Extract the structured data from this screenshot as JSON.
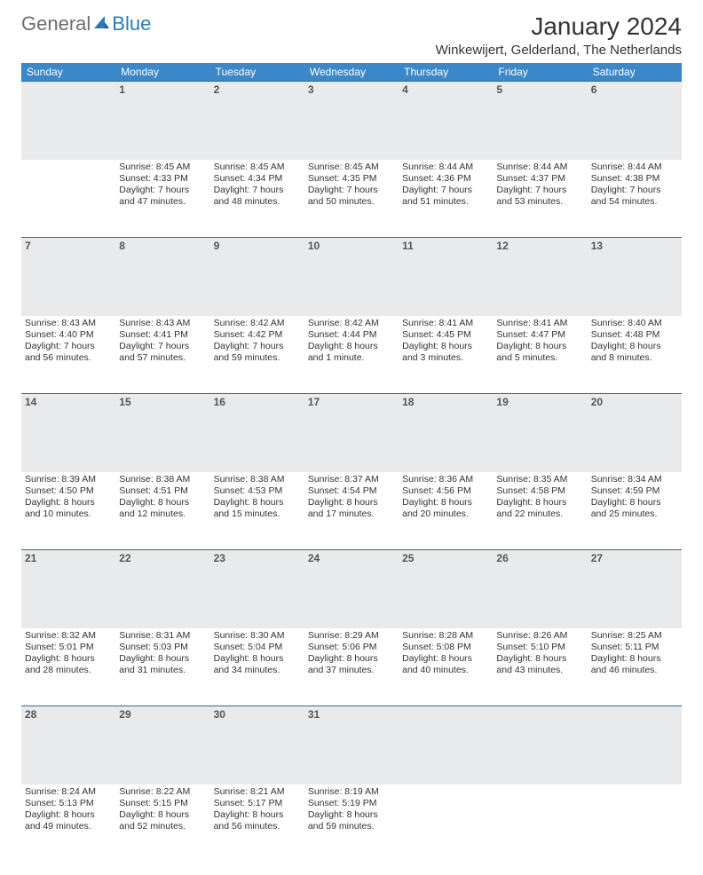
{
  "logo": {
    "text1": "General",
    "text2": "Blue"
  },
  "title": "January 2024",
  "location": "Winkewijert, Gelderland, The Netherlands",
  "colors": {
    "header_bg": "#3c87c7",
    "header_text": "#ffffff",
    "daynum_bg": "#e9eaeb",
    "daynum_border": "#2a6ca8",
    "text": "#333333"
  },
  "weekdays": [
    "Sunday",
    "Monday",
    "Tuesday",
    "Wednesday",
    "Thursday",
    "Friday",
    "Saturday"
  ],
  "weeks": [
    [
      {
        "n": "",
        "sr": "",
        "ss": "",
        "d1": "",
        "d2": ""
      },
      {
        "n": "1",
        "sr": "Sunrise: 8:45 AM",
        "ss": "Sunset: 4:33 PM",
        "d1": "Daylight: 7 hours",
        "d2": "and 47 minutes."
      },
      {
        "n": "2",
        "sr": "Sunrise: 8:45 AM",
        "ss": "Sunset: 4:34 PM",
        "d1": "Daylight: 7 hours",
        "d2": "and 48 minutes."
      },
      {
        "n": "3",
        "sr": "Sunrise: 8:45 AM",
        "ss": "Sunset: 4:35 PM",
        "d1": "Daylight: 7 hours",
        "d2": "and 50 minutes."
      },
      {
        "n": "4",
        "sr": "Sunrise: 8:44 AM",
        "ss": "Sunset: 4:36 PM",
        "d1": "Daylight: 7 hours",
        "d2": "and 51 minutes."
      },
      {
        "n": "5",
        "sr": "Sunrise: 8:44 AM",
        "ss": "Sunset: 4:37 PM",
        "d1": "Daylight: 7 hours",
        "d2": "and 53 minutes."
      },
      {
        "n": "6",
        "sr": "Sunrise: 8:44 AM",
        "ss": "Sunset: 4:38 PM",
        "d1": "Daylight: 7 hours",
        "d2": "and 54 minutes."
      }
    ],
    [
      {
        "n": "7",
        "sr": "Sunrise: 8:43 AM",
        "ss": "Sunset: 4:40 PM",
        "d1": "Daylight: 7 hours",
        "d2": "and 56 minutes."
      },
      {
        "n": "8",
        "sr": "Sunrise: 8:43 AM",
        "ss": "Sunset: 4:41 PM",
        "d1": "Daylight: 7 hours",
        "d2": "and 57 minutes."
      },
      {
        "n": "9",
        "sr": "Sunrise: 8:42 AM",
        "ss": "Sunset: 4:42 PM",
        "d1": "Daylight: 7 hours",
        "d2": "and 59 minutes."
      },
      {
        "n": "10",
        "sr": "Sunrise: 8:42 AM",
        "ss": "Sunset: 4:44 PM",
        "d1": "Daylight: 8 hours",
        "d2": "and 1 minute."
      },
      {
        "n": "11",
        "sr": "Sunrise: 8:41 AM",
        "ss": "Sunset: 4:45 PM",
        "d1": "Daylight: 8 hours",
        "d2": "and 3 minutes."
      },
      {
        "n": "12",
        "sr": "Sunrise: 8:41 AM",
        "ss": "Sunset: 4:47 PM",
        "d1": "Daylight: 8 hours",
        "d2": "and 5 minutes."
      },
      {
        "n": "13",
        "sr": "Sunrise: 8:40 AM",
        "ss": "Sunset: 4:48 PM",
        "d1": "Daylight: 8 hours",
        "d2": "and 8 minutes."
      }
    ],
    [
      {
        "n": "14",
        "sr": "Sunrise: 8:39 AM",
        "ss": "Sunset: 4:50 PM",
        "d1": "Daylight: 8 hours",
        "d2": "and 10 minutes."
      },
      {
        "n": "15",
        "sr": "Sunrise: 8:38 AM",
        "ss": "Sunset: 4:51 PM",
        "d1": "Daylight: 8 hours",
        "d2": "and 12 minutes."
      },
      {
        "n": "16",
        "sr": "Sunrise: 8:38 AM",
        "ss": "Sunset: 4:53 PM",
        "d1": "Daylight: 8 hours",
        "d2": "and 15 minutes."
      },
      {
        "n": "17",
        "sr": "Sunrise: 8:37 AM",
        "ss": "Sunset: 4:54 PM",
        "d1": "Daylight: 8 hours",
        "d2": "and 17 minutes."
      },
      {
        "n": "18",
        "sr": "Sunrise: 8:36 AM",
        "ss": "Sunset: 4:56 PM",
        "d1": "Daylight: 8 hours",
        "d2": "and 20 minutes."
      },
      {
        "n": "19",
        "sr": "Sunrise: 8:35 AM",
        "ss": "Sunset: 4:58 PM",
        "d1": "Daylight: 8 hours",
        "d2": "and 22 minutes."
      },
      {
        "n": "20",
        "sr": "Sunrise: 8:34 AM",
        "ss": "Sunset: 4:59 PM",
        "d1": "Daylight: 8 hours",
        "d2": "and 25 minutes."
      }
    ],
    [
      {
        "n": "21",
        "sr": "Sunrise: 8:32 AM",
        "ss": "Sunset: 5:01 PM",
        "d1": "Daylight: 8 hours",
        "d2": "and 28 minutes."
      },
      {
        "n": "22",
        "sr": "Sunrise: 8:31 AM",
        "ss": "Sunset: 5:03 PM",
        "d1": "Daylight: 8 hours",
        "d2": "and 31 minutes."
      },
      {
        "n": "23",
        "sr": "Sunrise: 8:30 AM",
        "ss": "Sunset: 5:04 PM",
        "d1": "Daylight: 8 hours",
        "d2": "and 34 minutes."
      },
      {
        "n": "24",
        "sr": "Sunrise: 8:29 AM",
        "ss": "Sunset: 5:06 PM",
        "d1": "Daylight: 8 hours",
        "d2": "and 37 minutes."
      },
      {
        "n": "25",
        "sr": "Sunrise: 8:28 AM",
        "ss": "Sunset: 5:08 PM",
        "d1": "Daylight: 8 hours",
        "d2": "and 40 minutes."
      },
      {
        "n": "26",
        "sr": "Sunrise: 8:26 AM",
        "ss": "Sunset: 5:10 PM",
        "d1": "Daylight: 8 hours",
        "d2": "and 43 minutes."
      },
      {
        "n": "27",
        "sr": "Sunrise: 8:25 AM",
        "ss": "Sunset: 5:11 PM",
        "d1": "Daylight: 8 hours",
        "d2": "and 46 minutes."
      }
    ],
    [
      {
        "n": "28",
        "sr": "Sunrise: 8:24 AM",
        "ss": "Sunset: 5:13 PM",
        "d1": "Daylight: 8 hours",
        "d2": "and 49 minutes."
      },
      {
        "n": "29",
        "sr": "Sunrise: 8:22 AM",
        "ss": "Sunset: 5:15 PM",
        "d1": "Daylight: 8 hours",
        "d2": "and 52 minutes."
      },
      {
        "n": "30",
        "sr": "Sunrise: 8:21 AM",
        "ss": "Sunset: 5:17 PM",
        "d1": "Daylight: 8 hours",
        "d2": "and 56 minutes."
      },
      {
        "n": "31",
        "sr": "Sunrise: 8:19 AM",
        "ss": "Sunset: 5:19 PM",
        "d1": "Daylight: 8 hours",
        "d2": "and 59 minutes."
      },
      {
        "n": "",
        "sr": "",
        "ss": "",
        "d1": "",
        "d2": ""
      },
      {
        "n": "",
        "sr": "",
        "ss": "",
        "d1": "",
        "d2": ""
      },
      {
        "n": "",
        "sr": "",
        "ss": "",
        "d1": "",
        "d2": ""
      }
    ]
  ]
}
